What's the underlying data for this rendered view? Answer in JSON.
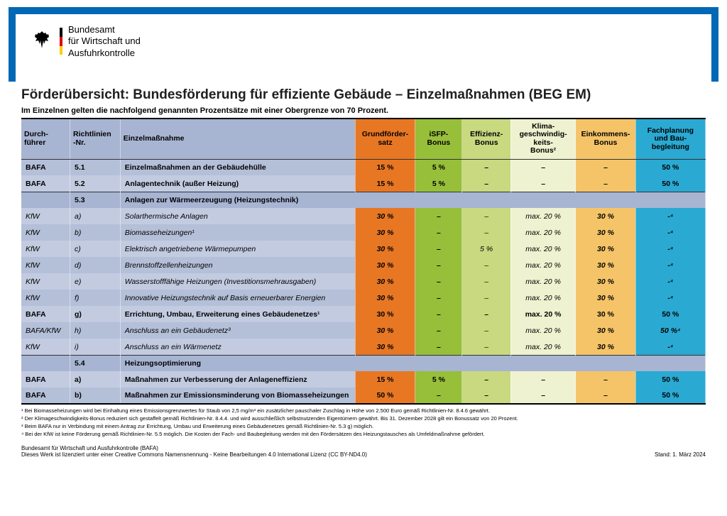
{
  "agency": {
    "line1": "Bundesamt",
    "line2": "für Wirtschaft und",
    "line3": "Ausfuhrkontrolle"
  },
  "title": "Förderübersicht: Bundesförderung für effiziente Gebäude – Einzelmaßnahmen (BEG EM)",
  "subtitle": "Im Einzelnen gelten die nachfolgend genannten Prozentsätze mit einer Obergrenze von 70 Prozent.",
  "columns": {
    "c0": "Durch-\nführer",
    "c1": "Richtlinien\n-Nr.",
    "c2": "Einzelmaßnahme",
    "c3": "Grundförder-\nsatz",
    "c4": "iSFP-\nBonus",
    "c5": "Effizienz-\nBonus",
    "c6": "Klima-\ngeschwindig-\nkeits-\nBonus²",
    "c7": "Einkommens-\nBonus",
    "c8": "Fachplanung\nund Bau-\nbegleitung"
  },
  "widths": [
    "60",
    "62",
    "290",
    "74",
    "58",
    "60",
    "80",
    "74",
    "86"
  ],
  "rows": [
    {
      "type": "bold",
      "d": "BAFA",
      "nr": "5.1",
      "label": "Einzelmaßnahmen an der Gebäudehülle",
      "g": "15 %",
      "i": "5 %",
      "e": "–",
      "k": "–",
      "ek": "–",
      "f": "50 %"
    },
    {
      "type": "bold",
      "d": "BAFA",
      "nr": "5.2",
      "label": "Anlagentechnik (außer Heizung)",
      "g": "15 %",
      "i": "5 %",
      "e": "–",
      "k": "–",
      "ek": "–",
      "f": "50 %"
    },
    {
      "type": "section",
      "d": "",
      "nr": "5.3",
      "label": "Anlagen zur Wärmeerzeugung (Heizungstechnik)"
    },
    {
      "type": "ital",
      "d": "KfW",
      "nr": "a)",
      "label": "Solarthermische Anlagen",
      "g": "30 %",
      "i": "–",
      "e": "–",
      "k": "max. 20 %",
      "ek": "30 %",
      "f": "-⁴"
    },
    {
      "type": "ital",
      "d": "KfW",
      "nr": "b)",
      "label": "Biomasseheizungen¹",
      "g": "30 %",
      "i": "–",
      "e": "–",
      "k": "max. 20 %",
      "ek": "30 %",
      "f": "-⁴"
    },
    {
      "type": "ital",
      "d": "KfW",
      "nr": "c)",
      "label": "Elektrisch angetriebene Wärmepumpen",
      "g": "30 %",
      "i": "–",
      "e": "5 %",
      "k": "max. 20 %",
      "ek": "30 %",
      "f": "-⁴"
    },
    {
      "type": "ital",
      "d": "KfW",
      "nr": "d)",
      "label": "Brennstoffzellenheizungen",
      "g": "30 %",
      "i": "–",
      "e": "–",
      "k": "max. 20 %",
      "ek": "30 %",
      "f": "-⁴"
    },
    {
      "type": "ital",
      "d": "KfW",
      "nr": "e)",
      "label": "Wasserstofffähige Heizungen (Investitionsmehrausgaben)",
      "g": "30 %",
      "i": "–",
      "e": "–",
      "k": "max. 20 %",
      "ek": "30 %",
      "f": "-⁴"
    },
    {
      "type": "ital",
      "d": "KfW",
      "nr": "f)",
      "label": "Innovative Heizungstechnik auf Basis erneuerbarer Energien",
      "g": "30 %",
      "i": "–",
      "e": "–",
      "k": "max. 20 %",
      "ek": "30 %",
      "f": "-⁴"
    },
    {
      "type": "bold",
      "d": "BAFA",
      "nr": "g)",
      "label": "Errichtung, Umbau, Erweiterung eines Gebäudenetzes¹",
      "g": "30 %",
      "i": "–",
      "e": "–",
      "k": "max. 20 %",
      "ek": "30 %",
      "f": "50 %"
    },
    {
      "type": "ital",
      "d": "BAFA/KfW",
      "nr": "h)",
      "label": "Anschluss an ein Gebäudenetz³",
      "g": "30 %",
      "i": "–",
      "e": "–",
      "k": "max. 20 %",
      "ek": "30 %",
      "f": "50 %⁴"
    },
    {
      "type": "ital",
      "d": "KfW",
      "nr": "i)",
      "label": "Anschluss an ein Wärmenetz",
      "g": "30 %",
      "i": "–",
      "e": "–",
      "k": "max. 20 %",
      "ek": "30 %",
      "f": "-⁴"
    },
    {
      "type": "section",
      "d": "",
      "nr": "5.4",
      "label": "Heizungsoptimierung"
    },
    {
      "type": "bold",
      "d": "BAFA",
      "nr": "a)",
      "label": "Maßnahmen zur Verbesserung der Anlageneffizienz",
      "g": "15 %",
      "i": "5 %",
      "e": "–",
      "k": "–",
      "ek": "–",
      "f": "50 %"
    },
    {
      "type": "bold",
      "d": "BAFA",
      "nr": "b)",
      "label": "Maßnahmen zur Emissionsminderung von Biomasseheizungen",
      "g": "50 %",
      "i": "–",
      "e": "–",
      "k": "–",
      "ek": "–",
      "f": "50 %"
    }
  ],
  "footnotes": [
    "¹ Bei Biomasseheizungen wird bei Einhaltung eines Emissionsgrenzwertes für Staub von 2,5 mg/m³ ein zusätzlicher pauschaler Zuschlag in Höhe von 2.500 Euro gemäß Richtlinien-Nr. 8.4.6 gewährt.",
    "² Der Klimageschwindigkeits-Bonus reduziert sich gestaffelt gemäß Richtlinien-Nr. 8.4.4. und wird ausschließlich selbstnutzenden Eigentümern gewährt. Bis 31. Dezember 2028 gilt ein Bonussatz von 20 Prozent.",
    "³ Beim BAFA nur in Verbindung mit einem Antrag zur Errichtung, Umbau und Erweiterung eines Gebäudenetzes gemäß Richtlinien-Nr. 5.3 g) möglich.",
    "⁴ Bei der KfW ist keine Förderung gemäß Richtlinien-Nr. 5.5 möglich. Die Kosten der Fach- und Baubegleitung werden mit den Fördersätzen des Heizungstausches als Umfeldmaßnahme gefördert."
  ],
  "footer": {
    "org": "Bundesamt für Wirtschaft und Ausfuhrkontrolle (BAFA)",
    "license": "Dieses Werk ist lizenziert unter einer Creative Commons Namensnennung - Keine Bearbeitungen 4.0 International Lizenz (CC BY-ND4.0)",
    "date": "Stand: 1. März 2024"
  },
  "colors": {
    "frame": "#0068b4",
    "headerBg": "#a7b4d2",
    "rowA": "#c2cbe0",
    "rowB": "#b4bfd8",
    "grund": "#e87724",
    "isfp": "#97bf3a",
    "effiz": "#c8d980",
    "klima": "#eff2d0",
    "eink": "#f5c468",
    "fach": "#2aa9d2",
    "flag_black": "#000000",
    "flag_red": "#dd0000",
    "flag_gold": "#ffce00"
  }
}
